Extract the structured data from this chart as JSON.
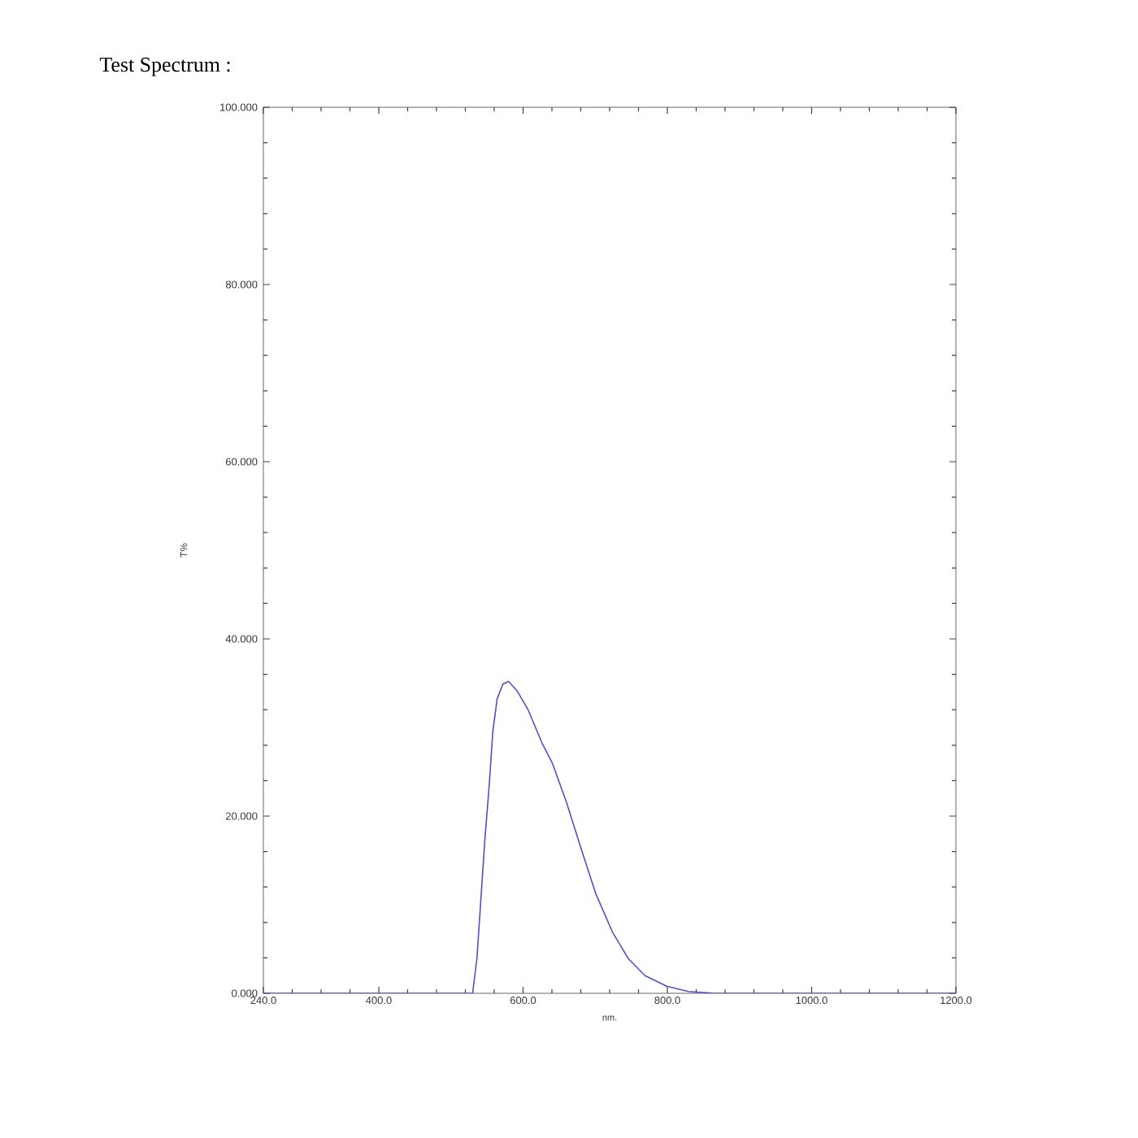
{
  "chart_data": {
    "type": "line",
    "title": "Test Spectrum :",
    "xlabel": "nm.",
    "ylabel": "T%",
    "x": [
      240,
      400,
      520,
      530,
      536,
      542,
      547,
      553,
      558,
      564,
      572,
      580,
      592,
      607,
      626,
      641,
      660,
      679,
      701,
      724,
      746,
      769,
      799,
      829,
      866,
      1000,
      1200
    ],
    "series": [
      {
        "color": "#5050c8",
        "values": [
          0,
          0,
          0,
          0,
          3.9,
          11.2,
          17.3,
          23.4,
          29.5,
          33.2,
          34.9,
          35.2,
          34.1,
          32.0,
          28.3,
          25.9,
          21.6,
          16.7,
          11.2,
          6.9,
          3.9,
          2.0,
          0.8,
          0.2,
          0,
          0,
          0
        ]
      }
    ],
    "xlim": [
      240,
      1200
    ],
    "ylim": [
      0,
      100
    ],
    "xticks": [
      {
        "value": 240,
        "label": "240.0"
      },
      {
        "value": 280,
        "label": null
      },
      {
        "value": 320,
        "label": null
      },
      {
        "value": 360,
        "label": null
      },
      {
        "value": 400,
        "label": "400.0"
      },
      {
        "value": 440,
        "label": null
      },
      {
        "value": 480,
        "label": null
      },
      {
        "value": 520,
        "label": null
      },
      {
        "value": 560,
        "label": null
      },
      {
        "value": 600,
        "label": "600.0"
      },
      {
        "value": 640,
        "label": null
      },
      {
        "value": 680,
        "label": null
      },
      {
        "value": 720,
        "label": null
      },
      {
        "value": 760,
        "label": null
      },
      {
        "value": 800,
        "label": "800.0"
      },
      {
        "value": 840,
        "label": null
      },
      {
        "value": 880,
        "label": null
      },
      {
        "value": 920,
        "label": null
      },
      {
        "value": 960,
        "label": null
      },
      {
        "value": 1000,
        "label": "1000.0"
      },
      {
        "value": 1040,
        "label": null
      },
      {
        "value": 1080,
        "label": null
      },
      {
        "value": 1120,
        "label": null
      },
      {
        "value": 1160,
        "label": null
      },
      {
        "value": 1200,
        "label": "1200.0"
      }
    ],
    "yticks": [
      {
        "value": 0,
        "label": "0.000"
      },
      {
        "value": 4,
        "label": null
      },
      {
        "value": 8,
        "label": null
      },
      {
        "value": 12,
        "label": null
      },
      {
        "value": 16,
        "label": null
      },
      {
        "value": 20,
        "label": "20.000"
      },
      {
        "value": 24,
        "label": null
      },
      {
        "value": 28,
        "label": null
      },
      {
        "value": 32,
        "label": null
      },
      {
        "value": 36,
        "label": null
      },
      {
        "value": 40,
        "label": "40.000"
      },
      {
        "value": 44,
        "label": null
      },
      {
        "value": 48,
        "label": null
      },
      {
        "value": 52,
        "label": null
      },
      {
        "value": 56,
        "label": null
      },
      {
        "value": 60,
        "label": "60.000"
      },
      {
        "value": 64,
        "label": null
      },
      {
        "value": 68,
        "label": null
      },
      {
        "value": 72,
        "label": null
      },
      {
        "value": 76,
        "label": null
      },
      {
        "value": 80,
        "label": "80.000"
      },
      {
        "value": 84,
        "label": null
      },
      {
        "value": 88,
        "label": null
      },
      {
        "value": 92,
        "label": null
      },
      {
        "value": 96,
        "label": null
      },
      {
        "value": 100,
        "label": "100.000"
      }
    ],
    "marker": "none",
    "line_style": "solid"
  }
}
